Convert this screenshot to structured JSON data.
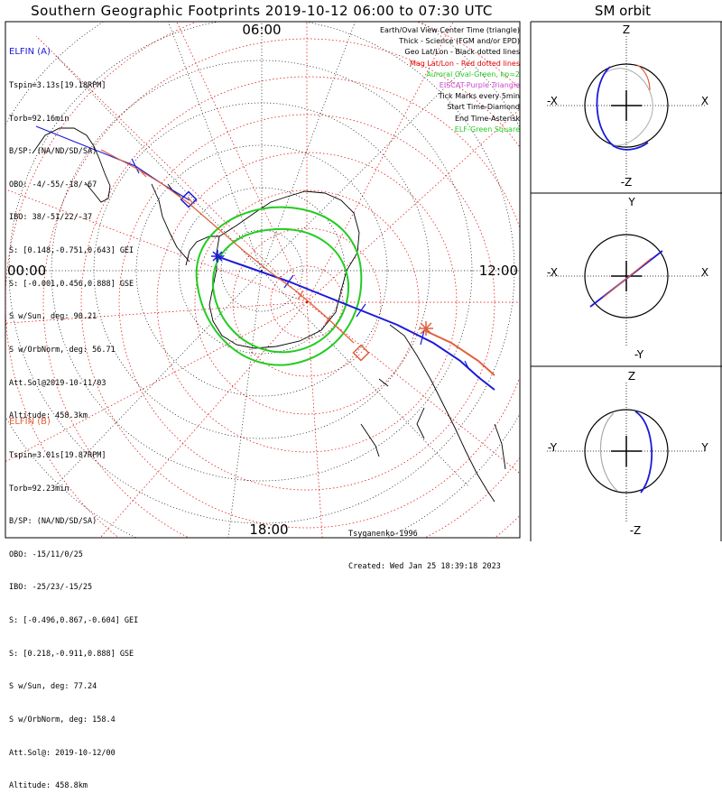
{
  "title": "Southern Geographic Footprints 2019-10-12 06:00 to 07:30 UTC",
  "orbit_title": "SM orbit",
  "clock_labels": {
    "top": "06:00",
    "left": "00:00",
    "right": "12:00",
    "bottom": "18:00"
  },
  "elfin_a": {
    "header": "ELFIN (A)",
    "color": "#1a1adb",
    "lines": [
      "Tspin=3.13s[19.18RPM]",
      "Torb=92.16min",
      "B/SP: (NA/ND/SD/SA)",
      "OBO: -4/-55/-18/-67",
      "IBO: 38/-51/22/-37",
      "S: [0.148,-0.751,0.643] GEI",
      "S: [-0.001,0.456,0.888] GSE",
      "S w/Sun, deg: 90.21",
      "S w/OrbNorm, deg: 56.71",
      "Att.Sol@2019-10-11/03",
      "Altitude: 458.3km"
    ]
  },
  "elfin_b": {
    "header": "ELFIN (B)",
    "color": "#e0603a",
    "lines": [
      "Tspin=3.01s[19.87RPM]",
      "Torb=92.23min",
      "B/SP: (NA/ND/SD/SA)",
      "OBO: -15/11/0/25",
      "IBO: -25/23/-15/25",
      "S: [-0.496,0.867,-0.604] GEI",
      "S: [0.218,-0.911,0.888] GSE",
      "S w/Sun, deg: 77.24",
      "S w/OrbNorm, deg: 158.4",
      "Att.Sol@: 2019-10-12/00",
      "Altitude: 458.8km"
    ]
  },
  "legend": [
    {
      "text": "Earth/Oval View Center Time (triangle)",
      "color": "#000000"
    },
    {
      "text": "Thick - Science (FGM and/or EPD)",
      "color": "#000000"
    },
    {
      "text": "Geo Lat/Lon - Black dotted lines",
      "color": "#000000"
    },
    {
      "text": "Mag Lat/Lon - Red dotted lines",
      "color": "#e00000"
    },
    {
      "text": "Auroral Oval-Green, kp=2",
      "color": "#22cc22"
    },
    {
      "text": "EISCAT-Purple Triangle",
      "color": "#cc44cc"
    },
    {
      "text": "Tick Marks every 5min",
      "color": "#000000"
    },
    {
      "text": "Start Time-Diamond",
      "color": "#000000"
    },
    {
      "text": "End Time-Asterisk",
      "color": "#000000"
    },
    {
      "text": "ELF-Green Square",
      "color": "#22cc22"
    }
  ],
  "footer": {
    "model": "Tsyganenko-1996",
    "created": "Created: Wed Jan 25 18:39:18 2023"
  },
  "orbit_panels": [
    {
      "top": "Z",
      "bottom": "-Z",
      "left": "-X",
      "right": "X"
    },
    {
      "top": "Y",
      "bottom": "-Y",
      "left": "-X",
      "right": "X"
    },
    {
      "top": "Z",
      "bottom": "-Z",
      "left": "-Y",
      "right": "Y"
    }
  ],
  "colors": {
    "elfin_a": "#1a1adb",
    "elfin_b": "#e0603a",
    "oval": "#22cc22",
    "mag_grid": "#e00000",
    "geo_grid": "#000000"
  }
}
